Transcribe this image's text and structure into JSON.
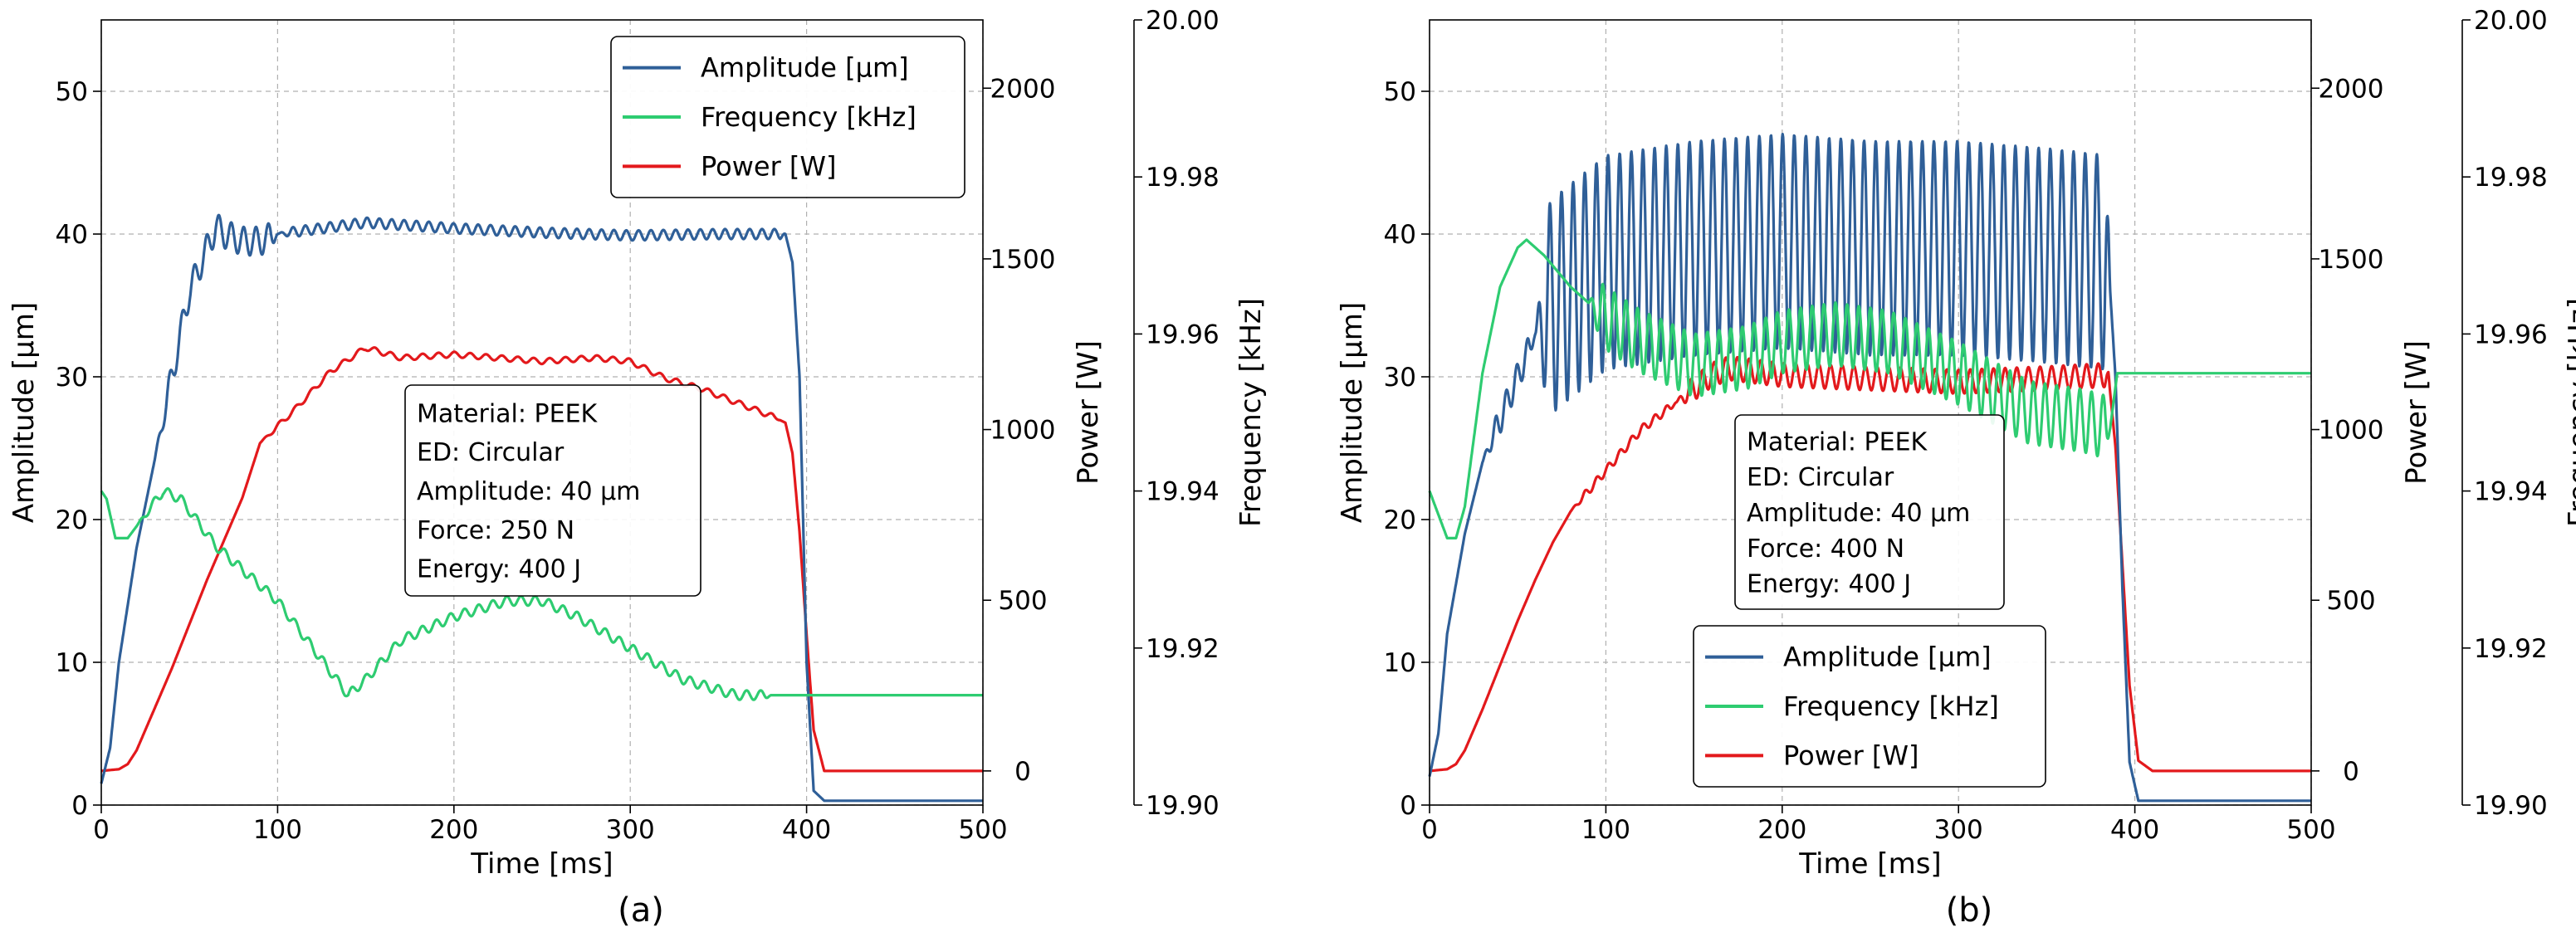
{
  "chart_data": [
    {
      "type": "line",
      "panel_label": "(a)",
      "xlabel": "Time [ms]",
      "ylabel_left": "Amplitude [µm]",
      "ylabel_power": "Power [W]",
      "ylabel_freq": "Frequency [kHz]",
      "xlim": [
        0,
        500
      ],
      "ylim_amplitude": [
        0,
        55
      ],
      "ylim_power": [
        -100,
        2200
      ],
      "ylim_frequency": [
        19.9,
        20.0
      ],
      "x_ticks": [
        "0",
        "100",
        "200",
        "300",
        "400",
        "500"
      ],
      "amp_ticks": [
        "0",
        "10",
        "20",
        "30",
        "40",
        "50"
      ],
      "power_ticks": [
        "0",
        "500",
        "1000",
        "1500",
        "2000"
      ],
      "freq_ticks": [
        "19.90",
        "19.92",
        "19.94",
        "19.96",
        "19.98",
        "20.00"
      ],
      "legend": [
        "Amplitude [µm]",
        "Frequency [kHz]",
        "Power [W]"
      ],
      "legend_position": "top-right",
      "info_lines": [
        "Material: PEEK",
        "ED: Circular",
        "Amplitude: 40 µm",
        "Force: 250 N",
        "Energy: 400 J"
      ],
      "series": [
        {
          "name": "Amplitude [µm]",
          "axis": "amplitude",
          "color": "#2f5f98",
          "x": [
            0,
            5,
            10,
            20,
            30,
            40,
            50,
            60,
            65,
            70,
            80,
            90,
            100,
            150,
            200,
            250,
            300,
            350,
            388,
            392,
            396,
            400,
            404,
            410,
            500
          ],
          "y": [
            1.5,
            4,
            10,
            18,
            24,
            30,
            36,
            39,
            40.5,
            40,
            39.5,
            39.5,
            40,
            40.8,
            40.4,
            40.1,
            39.9,
            40,
            40,
            38,
            30,
            10,
            1,
            0.3,
            0.3
          ],
          "oscillation": {
            "amp": 1.0,
            "from": 30,
            "to": 100,
            "period": 7,
            "amp2": 0.35,
            "from2": 100,
            "to2": 388,
            "period2": 7
          }
        },
        {
          "name": "Frequency [kHz]",
          "axis": "frequency",
          "color": "#2ecc71",
          "x": [
            0,
            3,
            8,
            15,
            25,
            35,
            45,
            55,
            65,
            80,
            100,
            120,
            130,
            140,
            150,
            170,
            200,
            230,
            250,
            270,
            300,
            330,
            360,
            400,
            500
          ],
          "y": [
            19.94,
            19.939,
            19.934,
            19.934,
            19.937,
            19.94,
            19.939,
            19.936,
            19.933,
            19.93,
            19.926,
            19.92,
            19.917,
            19.914,
            19.916,
            19.921,
            19.924,
            19.926,
            19.926,
            19.924,
            19.92,
            19.916,
            19.914,
            19.914,
            19.914
          ],
          "oscillation": {
            "amp": 0.0006,
            "from": 20,
            "to": 380,
            "period": 8
          }
        },
        {
          "name": "Power [W]",
          "axis": "power",
          "color": "#e3191c",
          "x": [
            0,
            10,
            15,
            20,
            30,
            40,
            50,
            60,
            70,
            80,
            90,
            110,
            130,
            150,
            170,
            200,
            250,
            280,
            300,
            320,
            340,
            360,
            380,
            388,
            392,
            396,
            400,
            404,
            410,
            500
          ],
          "y": [
            0,
            5,
            20,
            60,
            180,
            300,
            430,
            560,
            680,
            800,
            960,
            1060,
            1170,
            1240,
            1210,
            1220,
            1200,
            1210,
            1200,
            1150,
            1120,
            1080,
            1040,
            1020,
            930,
            700,
            400,
            120,
            0,
            0
          ],
          "oscillation": {
            "amp": 8,
            "from": 90,
            "to": 385,
            "period": 9
          }
        }
      ]
    },
    {
      "type": "line",
      "panel_label": "(b)",
      "xlabel": "Time [ms]",
      "ylabel_left": "Amplitude [µm]",
      "ylabel_power": "Power [W]",
      "ylabel_freq": "Frequency [kHz]",
      "xlim": [
        0,
        500
      ],
      "ylim_amplitude": [
        0,
        55
      ],
      "ylim_power": [
        -100,
        2200
      ],
      "ylim_frequency": [
        19.9,
        20.0
      ],
      "x_ticks": [
        "0",
        "100",
        "200",
        "300",
        "400",
        "500"
      ],
      "amp_ticks": [
        "0",
        "10",
        "20",
        "30",
        "40",
        "50"
      ],
      "power_ticks": [
        "0",
        "500",
        "1000",
        "1500",
        "2000"
      ],
      "freq_ticks": [
        "19.90",
        "19.92",
        "19.94",
        "19.96",
        "19.98",
        "20.00"
      ],
      "legend": [
        "Amplitude [µm]",
        "Frequency [kHz]",
        "Power [W]"
      ],
      "legend_position": "lower-center",
      "info_lines": [
        "Material: PEEK",
        "ED: Circular",
        "Amplitude: 40 µm",
        "Force: 400 N",
        "Energy: 400 J"
      ],
      "series": [
        {
          "name": "Amplitude [µm]",
          "axis": "amplitude",
          "color": "#2f5f98",
          "x": [
            0,
            5,
            10,
            20,
            30,
            40,
            50,
            60,
            70,
            80,
            90,
            100,
            150,
            200,
            250,
            300,
            350,
            385,
            389,
            393,
            397,
            402,
            500
          ],
          "y": [
            2,
            5,
            12,
            19,
            24,
            27,
            30,
            33,
            35,
            36,
            37,
            38,
            39,
            39.5,
            39,
            39,
            38.5,
            38,
            30,
            15,
            3,
            0.3,
            0.3
          ],
          "oscillation": {
            "amp": 1.0,
            "from": 30,
            "to": 60,
            "period": 6,
            "amp2": 7.5,
            "from2": 60,
            "to2": 386,
            "period2": 6.6
          }
        },
        {
          "name": "Frequency [kHz]",
          "axis": "frequency",
          "color": "#2ecc71",
          "x": [
            0,
            5,
            10,
            15,
            20,
            30,
            40,
            50,
            55,
            65,
            80,
            100,
            120,
            150,
            180,
            200,
            230,
            260,
            300,
            340,
            370,
            386,
            390,
            500
          ],
          "y": [
            19.94,
            19.937,
            19.934,
            19.934,
            19.938,
            19.955,
            19.966,
            19.971,
            19.972,
            19.97,
            19.966,
            19.962,
            19.959,
            19.956,
            19.957,
            19.959,
            19.96,
            19.959,
            19.955,
            19.95,
            19.949,
            19.948,
            19.955,
            19.955
          ],
          "oscillation": {
            "amp": 0.0,
            "from": 60,
            "to": 90,
            "period": 6.6,
            "amp2": 0.004,
            "from2": 90,
            "to2": 386,
            "period2": 6.6
          }
        },
        {
          "name": "Power [W]",
          "axis": "power",
          "color": "#e3191c",
          "x": [
            0,
            10,
            15,
            20,
            30,
            40,
            50,
            60,
            70,
            80,
            100,
            120,
            140,
            160,
            170,
            200,
            250,
            300,
            350,
            385,
            389,
            393,
            397,
            402,
            410,
            500
          ],
          "y": [
            0,
            5,
            20,
            60,
            180,
            310,
            440,
            560,
            670,
            760,
            880,
            1000,
            1080,
            1160,
            1180,
            1160,
            1150,
            1140,
            1150,
            1160,
            950,
            600,
            250,
            30,
            0,
            0
          ],
          "oscillation": {
            "amp": 12,
            "from": 80,
            "to": 140,
            "period": 6.6,
            "amp2": 35,
            "from2": 140,
            "to2": 386,
            "period2": 6.6
          }
        }
      ]
    }
  ]
}
